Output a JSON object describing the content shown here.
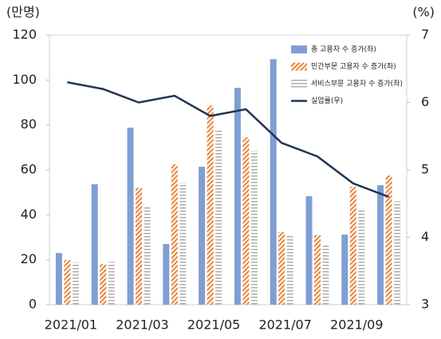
{
  "chart_data": {
    "type": "bar",
    "y_label": "(만명)",
    "y2_label": "(%)",
    "categories": [
      "2021/01",
      null,
      "2021/03",
      null,
      "2021/05",
      null,
      "2021/07",
      null,
      "2021/09",
      null
    ],
    "series": [
      {
        "name": "총 고용자 수 증가(좌)",
        "type": "bar",
        "color": "#7f9fd3",
        "hatch": "solid",
        "values": [
          23,
          53.6,
          78.8,
          27,
          61.4,
          96.5,
          109.3,
          48.3,
          31.2,
          53.2
        ]
      },
      {
        "name": "민간부문 고용자 수 증가(좌)",
        "type": "bar",
        "color": "#e8853a",
        "hatch": "diagonal",
        "values": [
          19.9,
          18,
          52,
          62.5,
          88.7,
          74.5,
          32.3,
          31,
          52.5,
          57.5
        ]
      },
      {
        "name": "서비스부문 고용자 수 증가(좌)",
        "type": "bar",
        "color": "#a8a8a8",
        "hatch": "horizontal",
        "values": [
          18.8,
          19,
          43.6,
          54.3,
          78,
          68.5,
          31.2,
          27,
          42,
          46
        ]
      },
      {
        "name": "실업률(우)",
        "type": "line",
        "axis": "y2",
        "color": "#1f3550",
        "values": [
          6.3,
          6.2,
          6.0,
          6.1,
          5.8,
          5.9,
          5.4,
          5.2,
          4.8,
          4.6
        ]
      }
    ],
    "ylim": [
      0,
      120
    ],
    "yticks": [
      0,
      20,
      40,
      60,
      80,
      100,
      120
    ],
    "y2lim": [
      3,
      7
    ],
    "y2ticks": [
      3,
      4,
      5,
      6,
      7
    ],
    "legend": "upper right",
    "grid": false
  }
}
